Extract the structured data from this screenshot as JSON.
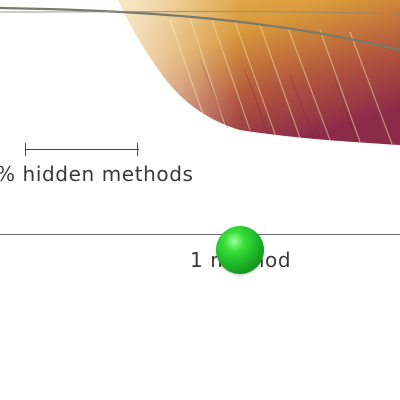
{
  "scale": {
    "label": "% hidden methods"
  },
  "row": {
    "label": "1 method"
  },
  "colors": {
    "feather_gold": "#d9a43c",
    "feather_maroon": "#8c2a4a",
    "cursor_green": "#1fba2a",
    "text": "#3a3a3a"
  },
  "icons": {
    "cursor": "green-sphere-cursor-icon"
  }
}
